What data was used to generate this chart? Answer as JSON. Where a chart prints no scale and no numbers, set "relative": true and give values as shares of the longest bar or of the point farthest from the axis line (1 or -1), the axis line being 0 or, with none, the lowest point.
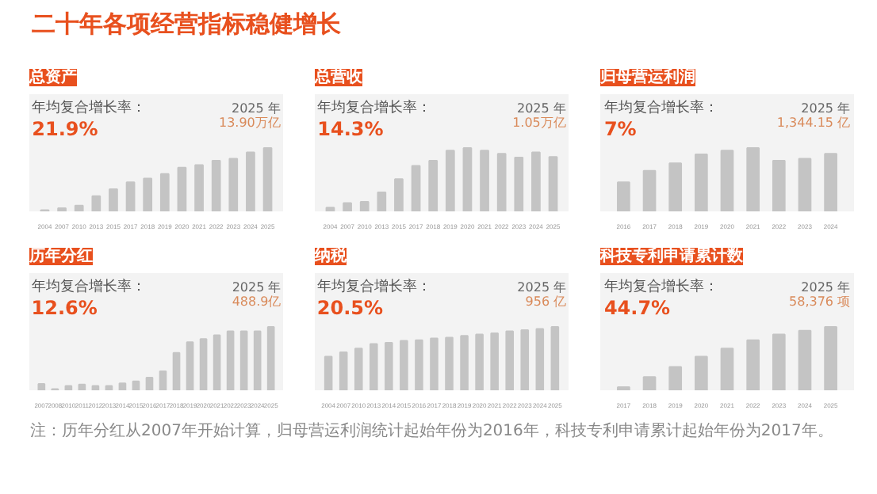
{
  "chart_data": [
    {
      "type": "other",
      "title": "二十年各项经营指标稳健增长",
      "annotations": [
        "注：历年分红从2007年开始计算，归母营运利润统计起始年份为2016年，科技专利申请累计起始年份为2017年。"
      ]
    },
    {
      "type": "bar",
      "relative": true,
      "title": "总资产",
      "color": "#c4c4c4",
      "annotations": [
        "年均复合增长率：",
        "21.9%",
        "2025 年",
        "13.90万亿"
      ],
      "categories": [
        "2004",
        "2007",
        "2010",
        "2013",
        "2015",
        "2017",
        "2018",
        "2019",
        "2020",
        "2021",
        "2022",
        "2023",
        "2024",
        "2025"
      ],
      "values": [
        0.02,
        0.05,
        0.09,
        0.24,
        0.35,
        0.46,
        0.52,
        0.59,
        0.69,
        0.73,
        0.8,
        0.83,
        0.93,
        1
      ]
    },
    {
      "type": "bar",
      "relative": true,
      "title": "总营收",
      "color": "#c4c4c4",
      "annotations": [
        "年均复合增长率：",
        "14.3%",
        "2025 年",
        "1.05万亿"
      ],
      "categories": [
        "2004",
        "2007",
        "2010",
        "2013",
        "2015",
        "2017",
        "2018",
        "2019",
        "2020",
        "2021",
        "2022",
        "2023",
        "2024",
        "2025"
      ],
      "values": [
        0.06,
        0.13,
        0.15,
        0.3,
        0.51,
        0.72,
        0.8,
        0.96,
        1,
        0.96,
        0.91,
        0.85,
        0.93,
        0.86
      ]
    },
    {
      "type": "bar",
      "relative": true,
      "title": "归母营运利润",
      "color": "#c4c4c4",
      "annotations": [
        "年均复合增长率：",
        "7%",
        "2025 年",
        "1,344.15 亿"
      ],
      "categories": [
        "2016",
        "2017",
        "2018",
        "2019",
        "2020",
        "2021",
        "2022",
        "2023",
        "2024"
      ],
      "values": [
        0.46,
        0.64,
        0.76,
        0.9,
        0.96,
        1,
        0.8,
        0.83,
        0.91
      ]
    },
    {
      "type": "bar",
      "relative": true,
      "title": "历年分红",
      "color": "#c4c4c4",
      "annotations": [
        "年均复合增长率：",
        "12.6%",
        "2025 年",
        "488.9亿"
      ],
      "categories": [
        "2007",
        "2008",
        "2010",
        "2011",
        "2012",
        "2013",
        "2014",
        "2015",
        "2016",
        "2017",
        "2018",
        "2019",
        "2020",
        "2021",
        "2022",
        "2023",
        "2024",
        "2025"
      ],
      "values": [
        0.1,
        0.02,
        0.07,
        0.09,
        0.07,
        0.07,
        0.11,
        0.14,
        0.2,
        0.3,
        0.59,
        0.76,
        0.81,
        0.87,
        0.93,
        0.93,
        0.93,
        1
      ]
    },
    {
      "type": "bar",
      "relative": true,
      "title": "纳税",
      "color": "#c4c4c4",
      "annotations": [
        "年均复合增长率：",
        "20.5%",
        "2025 年",
        "956 亿"
      ],
      "categories": [
        "2004",
        "2007",
        "2010",
        "2013",
        "2014",
        "2015",
        "2016",
        "2017",
        "2018",
        "2019",
        "2020",
        "2021",
        "2022",
        "2023",
        "2024",
        "2025"
      ],
      "values": [
        0.53,
        0.6,
        0.66,
        0.73,
        0.75,
        0.78,
        0.79,
        0.82,
        0.83,
        0.86,
        0.88,
        0.9,
        0.93,
        0.95,
        0.97,
        1
      ]
    },
    {
      "type": "bar",
      "relative": true,
      "title": "科技专利申请累计数",
      "color": "#c4c4c4",
      "annotations": [
        "年均复合增长率：",
        "44.7%",
        "2025 年",
        "58,376 项"
      ],
      "categories": [
        "2017",
        "2018",
        "2019",
        "2020",
        "2021",
        "2022",
        "2023",
        "2024",
        "2025"
      ],
      "values": [
        0.05,
        0.21,
        0.37,
        0.53,
        0.66,
        0.79,
        0.88,
        0.94,
        1
      ]
    }
  ]
}
